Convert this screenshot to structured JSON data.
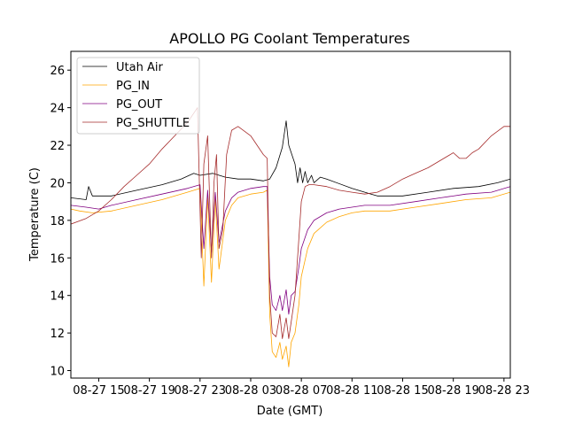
{
  "chart_data": {
    "type": "line",
    "title": "APOLLO PG Coolant Temperatures",
    "xlabel": "Date (GMT)",
    "ylabel": "Temperature (C)",
    "xlim": [
      12.8,
      47.5
    ],
    "ylim": [
      9.6,
      27.0
    ],
    "grid": false,
    "legend_position": "top-left",
    "x_unit": "hours since 08-27 00:00 GMT",
    "xticks": [
      {
        "x": 15,
        "label": "08-27 15"
      },
      {
        "x": 19,
        "label": "08-27 19"
      },
      {
        "x": 23,
        "label": "08-27 23"
      },
      {
        "x": 27,
        "label": "08-28 03"
      },
      {
        "x": 31,
        "label": "08-28 07"
      },
      {
        "x": 35,
        "label": "08-28 11"
      },
      {
        "x": 39,
        "label": "08-28 15"
      },
      {
        "x": 43,
        "label": "08-28 19"
      },
      {
        "x": 47,
        "label": "08-28 23"
      }
    ],
    "yticks": [
      {
        "y": 10,
        "label": "10"
      },
      {
        "y": 12,
        "label": "12"
      },
      {
        "y": 14,
        "label": "14"
      },
      {
        "y": 16,
        "label": "16"
      },
      {
        "y": 18,
        "label": "18"
      },
      {
        "y": 20,
        "label": "20"
      },
      {
        "y": 22,
        "label": "22"
      },
      {
        "y": 24,
        "label": "24"
      },
      {
        "y": 26,
        "label": "26"
      }
    ],
    "series": [
      {
        "name": "Utah Air",
        "color": "#000000",
        "points": [
          [
            12.8,
            19.2
          ],
          [
            14.0,
            19.1
          ],
          [
            14.2,
            19.8
          ],
          [
            14.5,
            19.3
          ],
          [
            16.0,
            19.3
          ],
          [
            18.0,
            19.6
          ],
          [
            20.0,
            19.9
          ],
          [
            21.5,
            20.2
          ],
          [
            22.5,
            20.5
          ],
          [
            23.0,
            20.4
          ],
          [
            24.0,
            20.5
          ],
          [
            25.0,
            20.3
          ],
          [
            26.0,
            20.2
          ],
          [
            27.0,
            20.2
          ],
          [
            28.0,
            20.1
          ],
          [
            28.5,
            20.2
          ],
          [
            29.0,
            20.8
          ],
          [
            29.5,
            21.9
          ],
          [
            29.8,
            23.3
          ],
          [
            30.0,
            22.0
          ],
          [
            30.5,
            21.0
          ],
          [
            30.7,
            20.0
          ],
          [
            30.9,
            20.8
          ],
          [
            31.1,
            20.0
          ],
          [
            31.3,
            20.6
          ],
          [
            31.5,
            20.0
          ],
          [
            31.8,
            20.4
          ],
          [
            32.0,
            20.0
          ],
          [
            32.5,
            20.3
          ],
          [
            33.0,
            20.2
          ],
          [
            35.0,
            19.7
          ],
          [
            36.5,
            19.4
          ],
          [
            37.0,
            19.3
          ],
          [
            39.0,
            19.3
          ],
          [
            41.0,
            19.5
          ],
          [
            43.0,
            19.7
          ],
          [
            45.0,
            19.8
          ],
          [
            46.5,
            20.0
          ],
          [
            47.5,
            20.2
          ]
        ]
      },
      {
        "name": "PG_IN",
        "color": "#ffa500",
        "points": [
          [
            12.8,
            18.6
          ],
          [
            13.5,
            18.5
          ],
          [
            14.5,
            18.4
          ],
          [
            16.0,
            18.5
          ],
          [
            18.0,
            18.8
          ],
          [
            20.0,
            19.1
          ],
          [
            22.0,
            19.5
          ],
          [
            23.0,
            19.7
          ],
          [
            23.3,
            14.5
          ],
          [
            23.6,
            19.3
          ],
          [
            23.9,
            14.7
          ],
          [
            24.2,
            19.2
          ],
          [
            24.5,
            15.4
          ],
          [
            25.0,
            18.0
          ],
          [
            25.5,
            18.8
          ],
          [
            26.0,
            19.2
          ],
          [
            27.0,
            19.4
          ],
          [
            28.0,
            19.5
          ],
          [
            28.3,
            19.6
          ],
          [
            28.5,
            13.0
          ],
          [
            28.7,
            11.0
          ],
          [
            29.0,
            10.7
          ],
          [
            29.3,
            11.5
          ],
          [
            29.5,
            10.6
          ],
          [
            29.8,
            11.3
          ],
          [
            30.0,
            10.2
          ],
          [
            30.2,
            11.5
          ],
          [
            30.5,
            12.0
          ],
          [
            30.8,
            13.5
          ],
          [
            31.0,
            15.0
          ],
          [
            31.5,
            16.5
          ],
          [
            32.0,
            17.3
          ],
          [
            33.0,
            17.9
          ],
          [
            34.0,
            18.2
          ],
          [
            35.0,
            18.4
          ],
          [
            36.0,
            18.5
          ],
          [
            38.0,
            18.5
          ],
          [
            40.0,
            18.7
          ],
          [
            42.0,
            18.9
          ],
          [
            44.0,
            19.1
          ],
          [
            46.0,
            19.2
          ],
          [
            47.5,
            19.5
          ]
        ]
      },
      {
        "name": "PG_OUT",
        "color": "#800080",
        "points": [
          [
            12.8,
            18.8
          ],
          [
            14.0,
            18.7
          ],
          [
            15.0,
            18.6
          ],
          [
            16.0,
            18.8
          ],
          [
            18.0,
            19.1
          ],
          [
            20.0,
            19.4
          ],
          [
            22.0,
            19.7
          ],
          [
            23.0,
            19.9
          ],
          [
            23.3,
            16.5
          ],
          [
            23.6,
            19.6
          ],
          [
            23.9,
            16.3
          ],
          [
            24.2,
            19.5
          ],
          [
            24.5,
            16.8
          ],
          [
            25.0,
            18.5
          ],
          [
            25.5,
            19.2
          ],
          [
            26.0,
            19.5
          ],
          [
            27.0,
            19.7
          ],
          [
            28.0,
            19.8
          ],
          [
            28.3,
            19.8
          ],
          [
            28.5,
            15.0
          ],
          [
            28.7,
            13.5
          ],
          [
            29.0,
            13.2
          ],
          [
            29.3,
            14.0
          ],
          [
            29.5,
            13.2
          ],
          [
            29.8,
            14.3
          ],
          [
            30.0,
            13.0
          ],
          [
            30.2,
            14.0
          ],
          [
            30.5,
            14.2
          ],
          [
            30.8,
            15.5
          ],
          [
            31.0,
            16.5
          ],
          [
            31.5,
            17.5
          ],
          [
            32.0,
            18.0
          ],
          [
            33.0,
            18.4
          ],
          [
            34.0,
            18.6
          ],
          [
            35.0,
            18.7
          ],
          [
            36.0,
            18.8
          ],
          [
            38.0,
            18.8
          ],
          [
            40.0,
            19.0
          ],
          [
            42.0,
            19.2
          ],
          [
            44.0,
            19.4
          ],
          [
            46.0,
            19.5
          ],
          [
            47.5,
            19.8
          ]
        ]
      },
      {
        "name": "PG_SHUTTLE",
        "color": "#a52a2a",
        "points": [
          [
            12.8,
            17.8
          ],
          [
            14.0,
            18.1
          ],
          [
            15.0,
            18.5
          ],
          [
            16.0,
            19.1
          ],
          [
            17.0,
            19.8
          ],
          [
            18.0,
            20.4
          ],
          [
            19.0,
            21.0
          ],
          [
            20.0,
            21.8
          ],
          [
            21.0,
            22.5
          ],
          [
            22.0,
            23.2
          ],
          [
            22.8,
            24.0
          ],
          [
            23.1,
            16.0
          ],
          [
            23.3,
            21.0
          ],
          [
            23.6,
            22.5
          ],
          [
            23.9,
            16.0
          ],
          [
            24.1,
            20.0
          ],
          [
            24.3,
            21.5
          ],
          [
            24.5,
            16.5
          ],
          [
            24.8,
            17.5
          ],
          [
            25.1,
            21.5
          ],
          [
            25.5,
            22.8
          ],
          [
            26.0,
            23.0
          ],
          [
            27.0,
            22.5
          ],
          [
            28.0,
            21.5
          ],
          [
            28.3,
            21.3
          ],
          [
            28.5,
            14.0
          ],
          [
            28.7,
            12.0
          ],
          [
            29.0,
            11.8
          ],
          [
            29.3,
            13.0
          ],
          [
            29.5,
            11.7
          ],
          [
            29.8,
            12.8
          ],
          [
            30.0,
            11.7
          ],
          [
            30.2,
            12.6
          ],
          [
            30.5,
            14.0
          ],
          [
            30.8,
            17.0
          ],
          [
            31.0,
            19.0
          ],
          [
            31.3,
            19.8
          ],
          [
            31.6,
            19.9
          ],
          [
            32.0,
            19.9
          ],
          [
            33.0,
            19.8
          ],
          [
            34.0,
            19.6
          ],
          [
            35.0,
            19.5
          ],
          [
            36.0,
            19.4
          ],
          [
            37.0,
            19.5
          ],
          [
            38.0,
            19.8
          ],
          [
            39.0,
            20.2
          ],
          [
            40.0,
            20.5
          ],
          [
            41.0,
            20.8
          ],
          [
            42.0,
            21.2
          ],
          [
            43.0,
            21.6
          ],
          [
            43.5,
            21.3
          ],
          [
            44.0,
            21.3
          ],
          [
            44.5,
            21.6
          ],
          [
            45.0,
            21.8
          ],
          [
            46.0,
            22.5
          ],
          [
            47.0,
            23.0
          ],
          [
            47.5,
            23.0
          ]
        ]
      }
    ]
  }
}
